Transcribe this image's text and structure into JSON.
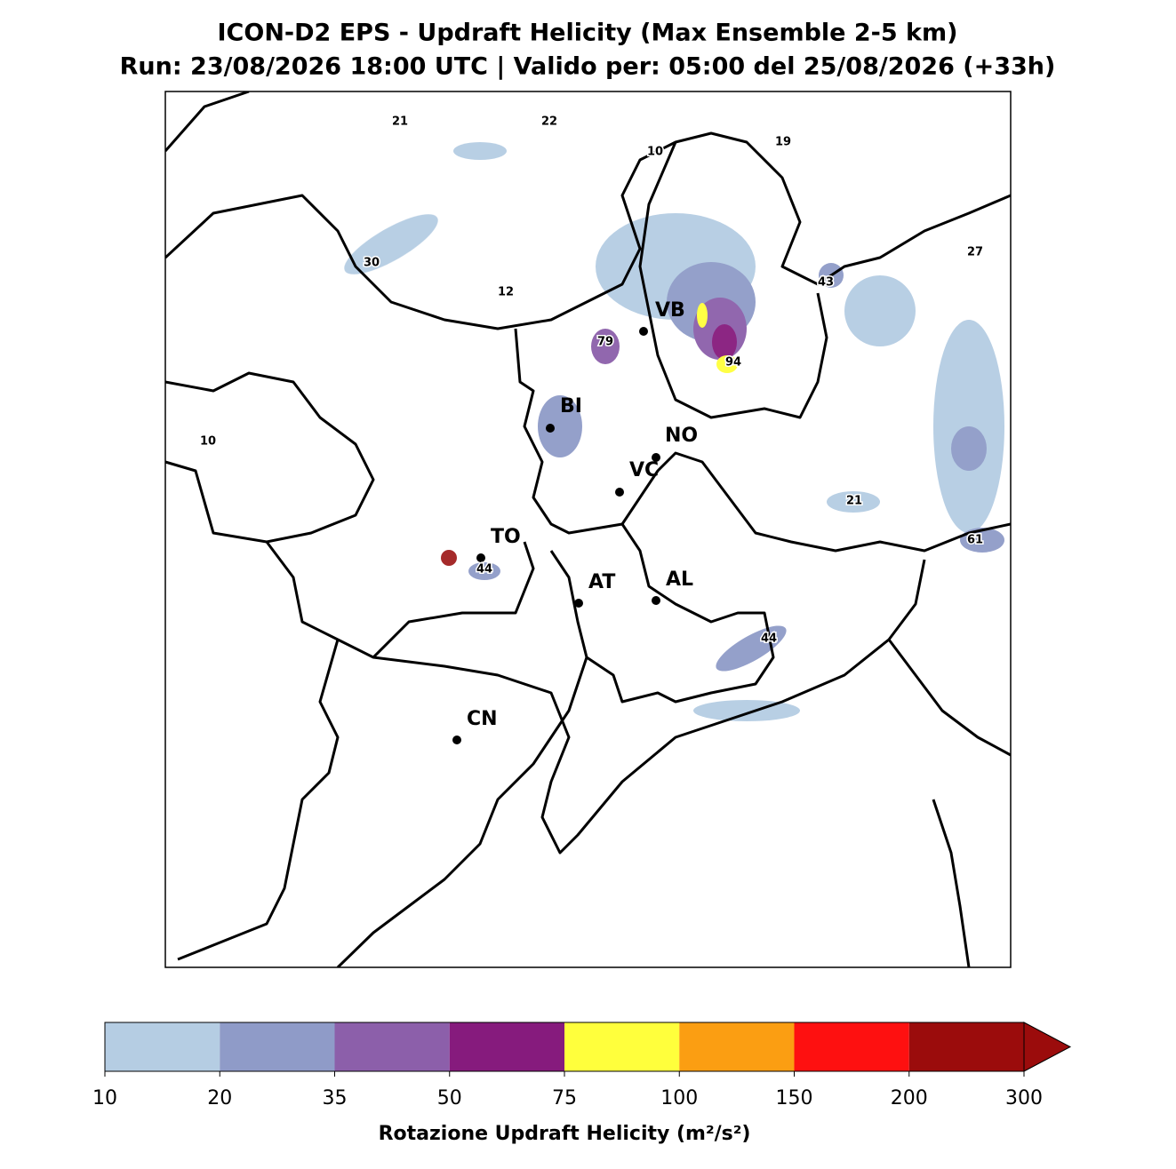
{
  "title": "ICON-D2 EPS - Updraft Helicity (Max Ensemble 2-5 km)",
  "subtitle": "Run: 23/08/2026 18:00 UTC | Valido per: 05:00 del 25/08/2026 (+33h)",
  "cities": [
    "VB",
    "BI",
    "NO",
    "VC",
    "TO",
    "AT",
    "AL",
    "CN"
  ],
  "max_labels": [
    21,
    22,
    10,
    19,
    30,
    12,
    27,
    43,
    79,
    94,
    10,
    21,
    61,
    44,
    44
  ],
  "colorbar": {
    "label": "Rotazione Updraft Helicity (m²/s²)",
    "ticks": [
      10,
      20,
      35,
      50,
      75,
      100,
      150,
      200,
      300
    ],
    "colors": [
      "#b5cde3",
      "#8f9bc8",
      "#8c5faa",
      "#861b7d",
      "#ffff3c",
      "#fb9e12",
      "#fe1010",
      "#9b0c0c"
    ]
  }
}
